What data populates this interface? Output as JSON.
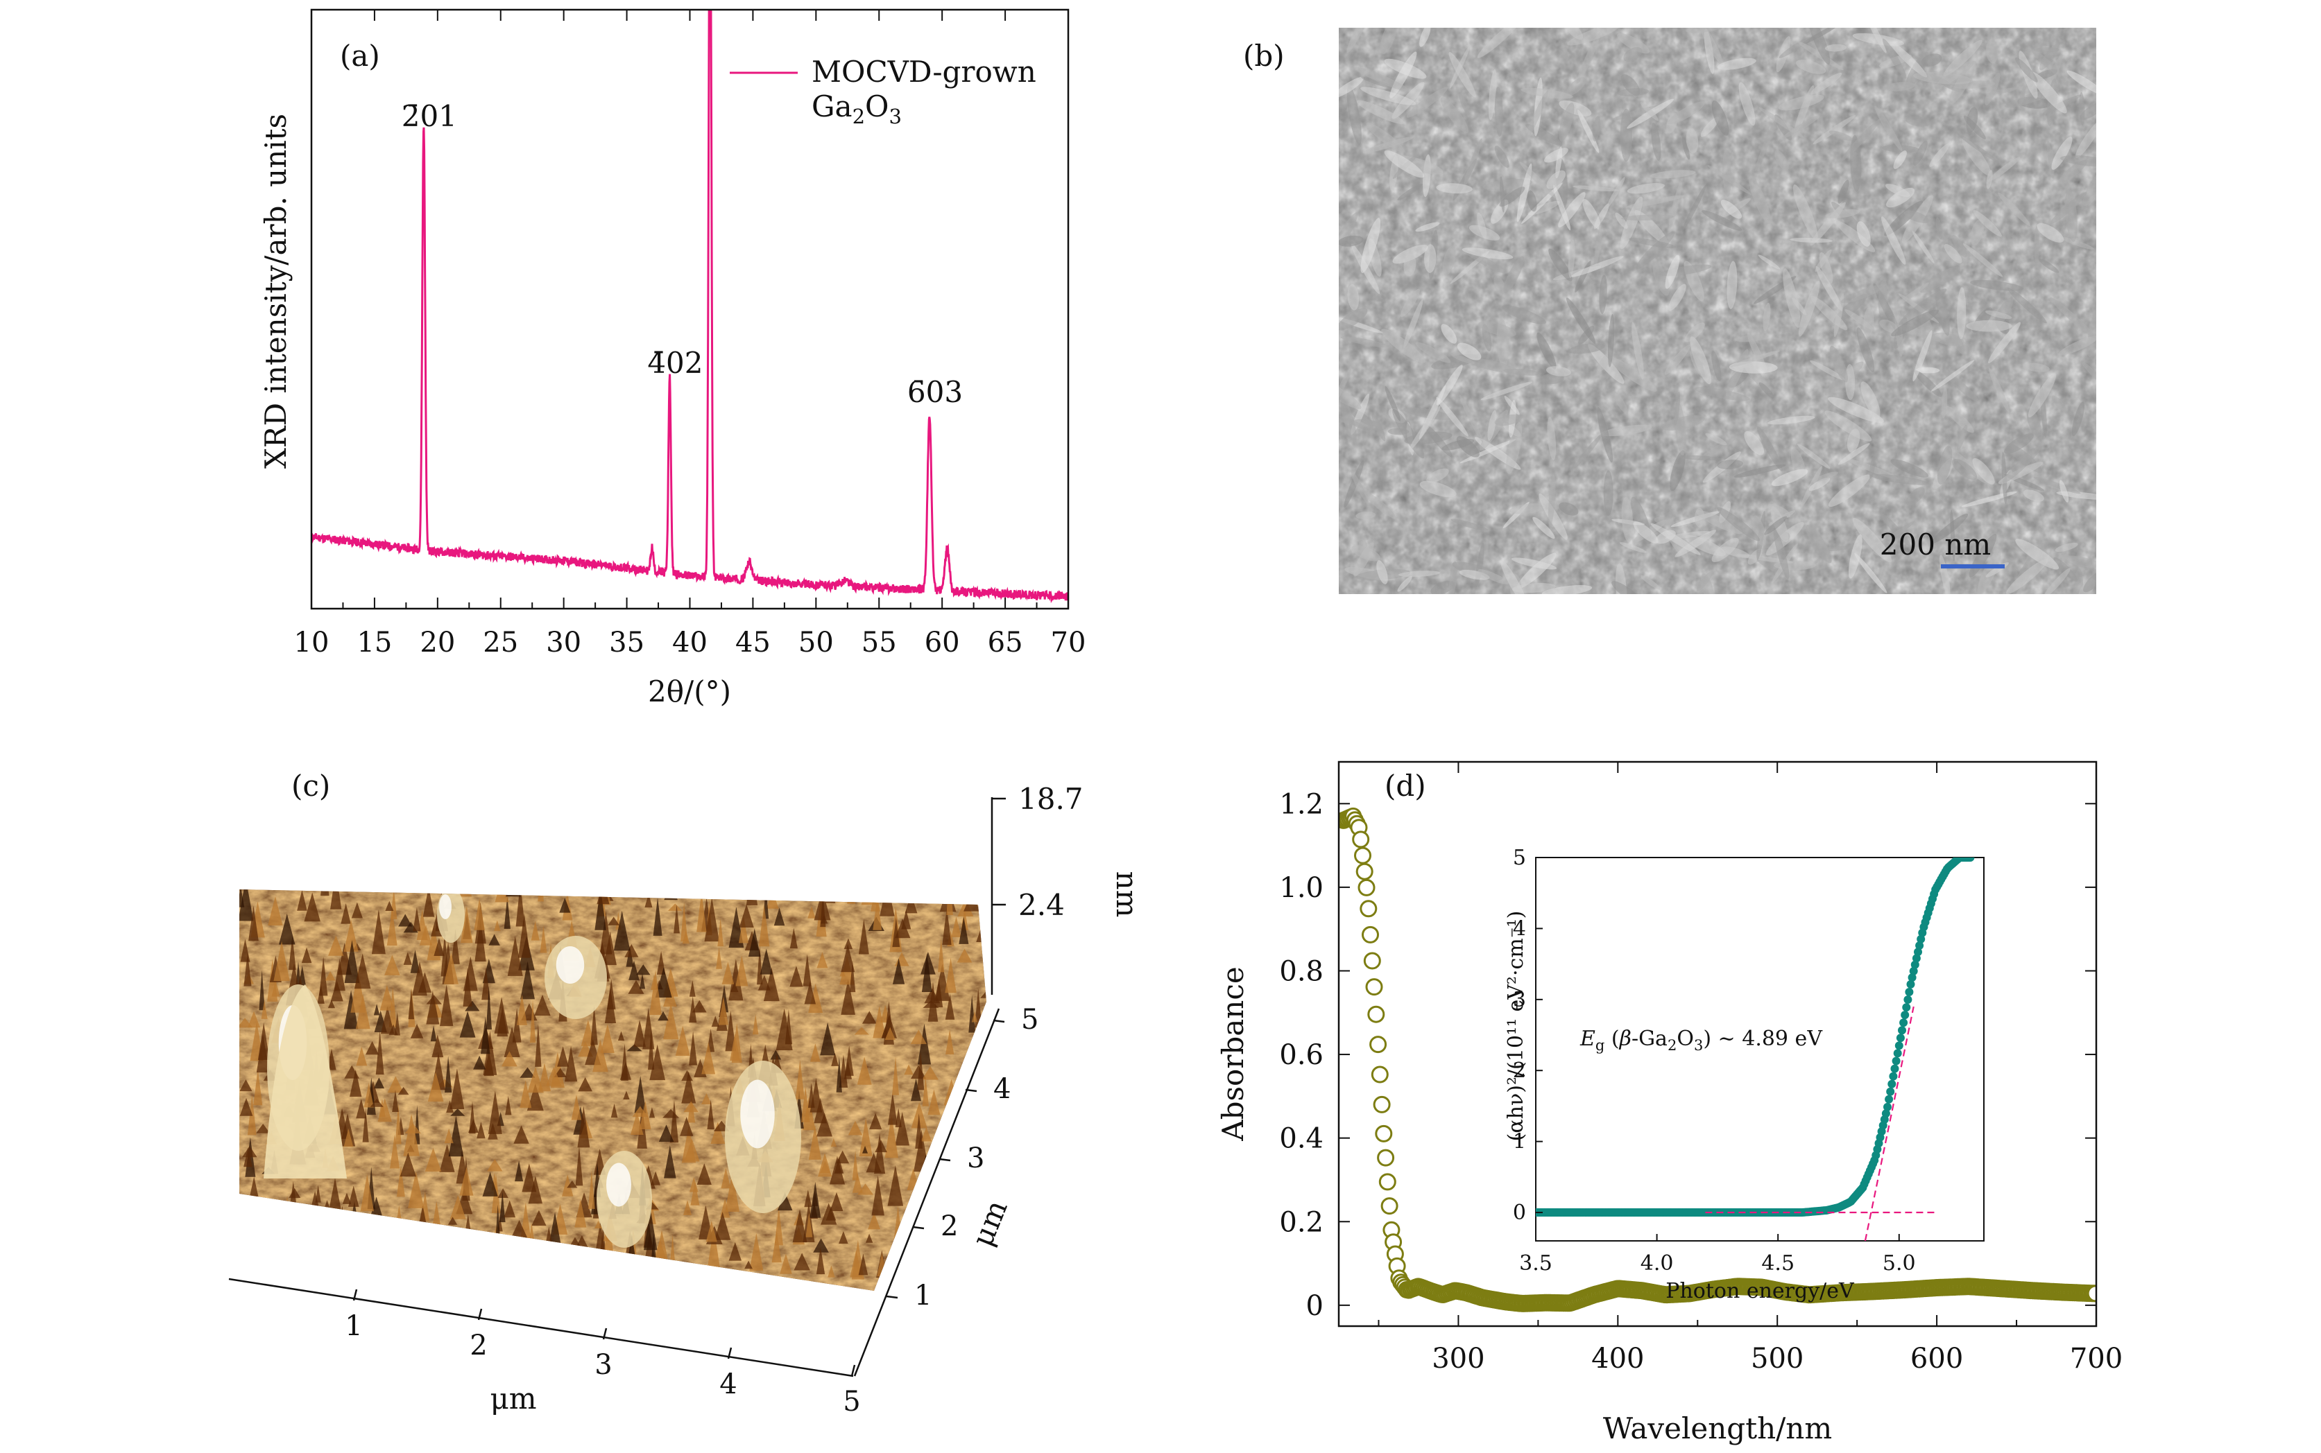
{
  "panels": {
    "a": "(a)",
    "b": "(b)",
    "c": "(c)",
    "d": "(d)"
  },
  "colors": {
    "xrd": "#e8177e",
    "absorbance": "#7d7d12",
    "inset": "#0e8a80",
    "fit": "#e8177e",
    "scalebar": "#3a64c8"
  },
  "chart_data": [
    {
      "id": "a",
      "type": "line",
      "xlabel": "2θ/(°)",
      "ylabel": "XRD intensity/arb. units",
      "xlim": [
        10,
        70
      ],
      "xticks": [
        10,
        15,
        20,
        25,
        30,
        35,
        40,
        45,
        50,
        55,
        60,
        65,
        70
      ],
      "ylim": [
        0,
        1
      ],
      "yticks_shown": false,
      "legend": {
        "position": "top-right",
        "line1": "MOCVD-grown",
        "line2": "Ga2O3"
      },
      "baseline": [
        [
          10,
          0.12
        ],
        [
          20,
          0.095
        ],
        [
          30,
          0.08
        ],
        [
          40,
          0.055
        ],
        [
          50,
          0.04
        ],
        [
          60,
          0.03
        ],
        [
          70,
          0.02
        ]
      ],
      "peaks": [
        {
          "x": 18.9,
          "height": 0.71,
          "width": 0.16,
          "label": "2̄01"
        },
        {
          "x": 37.0,
          "height": 0.04,
          "width": 0.15,
          "label": ""
        },
        {
          "x": 38.4,
          "height": 0.33,
          "width": 0.14,
          "label": "4̄02"
        },
        {
          "x": 41.6,
          "height": 1.25,
          "width": 0.15,
          "label": ""
        },
        {
          "x": 44.7,
          "height": 0.03,
          "width": 0.3,
          "label": ""
        },
        {
          "x": 52.3,
          "height": 0.01,
          "width": 0.4,
          "label": ""
        },
        {
          "x": 59.0,
          "height": 0.29,
          "width": 0.22,
          "label": "6̄03"
        },
        {
          "x": 60.4,
          "height": 0.07,
          "width": 0.25,
          "label": ""
        }
      ]
    },
    {
      "id": "b",
      "type": "image",
      "scalebar_label": "200 nm"
    },
    {
      "id": "c",
      "type": "surface",
      "z_ticks": [
        "18.7",
        "2.4"
      ],
      "z_unit": "nm",
      "x_ticks": [
        "1",
        "2",
        "3",
        "4",
        "5"
      ],
      "y_ticks": [
        "1",
        "2",
        "3",
        "4",
        "5"
      ],
      "x_unit": "μm",
      "y_unit": "μm"
    },
    {
      "id": "d",
      "type": "scatter",
      "xlabel": "Wavelength/nm",
      "ylabel": "Absorbance",
      "xlim": [
        225,
        700
      ],
      "xticks": [
        300,
        400,
        500,
        600,
        700
      ],
      "ylim": [
        -0.05,
        1.3
      ],
      "yticks": [
        0,
        0.2,
        0.4,
        0.6,
        0.8,
        1.0,
        1.2
      ],
      "ytick_labels": [
        "0",
        "0.2",
        "0.4",
        "0.6",
        "0.8",
        "1.0",
        "1.2"
      ],
      "curve": [
        [
          228,
          1.16
        ],
        [
          234,
          1.17
        ],
        [
          238,
          1.14
        ],
        [
          243,
          0.98
        ],
        [
          248,
          0.72
        ],
        [
          253,
          0.42
        ],
        [
          258,
          0.18
        ],
        [
          263,
          0.06
        ],
        [
          268,
          0.035
        ],
        [
          275,
          0.045
        ],
        [
          282,
          0.035
        ],
        [
          290,
          0.025
        ],
        [
          298,
          0.035
        ],
        [
          305,
          0.03
        ],
        [
          315,
          0.018
        ],
        [
          330,
          0.008
        ],
        [
          340,
          0.004
        ],
        [
          355,
          0.006
        ],
        [
          370,
          0.005
        ],
        [
          385,
          0.025
        ],
        [
          400,
          0.04
        ],
        [
          415,
          0.035
        ],
        [
          430,
          0.025
        ],
        [
          445,
          0.028
        ],
        [
          460,
          0.038
        ],
        [
          475,
          0.045
        ],
        [
          490,
          0.043
        ],
        [
          505,
          0.032
        ],
        [
          520,
          0.025
        ],
        [
          540,
          0.03
        ],
        [
          560,
          0.033
        ],
        [
          580,
          0.037
        ],
        [
          600,
          0.042
        ],
        [
          620,
          0.045
        ],
        [
          640,
          0.04
        ],
        [
          660,
          0.035
        ],
        [
          680,
          0.031
        ],
        [
          700,
          0.028
        ]
      ],
      "inset": {
        "xlabel": "Photon energy/eV",
        "ylabel": "(αhν)²/(10¹¹ eV²·cm⁻¹)",
        "xlim": [
          3.5,
          5.35
        ],
        "xticks": [
          3.5,
          4.0,
          4.5,
          5.0
        ],
        "xtick_labels": [
          "3.5",
          "4.0",
          "4.5",
          "5.0"
        ],
        "ylim": [
          -0.4,
          5
        ],
        "yticks": [
          0,
          1,
          2,
          3,
          4,
          5
        ],
        "annotation": "Eg (β-Ga2O3) ~ 4.89 eV",
        "bandgap": 4.89,
        "curve": [
          [
            3.5,
            0
          ],
          [
            4.6,
            0
          ],
          [
            4.7,
            0.03
          ],
          [
            4.75,
            0.07
          ],
          [
            4.8,
            0.15
          ],
          [
            4.85,
            0.35
          ],
          [
            4.9,
            0.75
          ],
          [
            4.95,
            1.45
          ],
          [
            5.0,
            2.35
          ],
          [
            5.05,
            3.25
          ],
          [
            5.1,
            4.0
          ],
          [
            5.15,
            4.55
          ],
          [
            5.2,
            4.85
          ],
          [
            5.25,
            5.0
          ]
        ]
      }
    }
  ]
}
